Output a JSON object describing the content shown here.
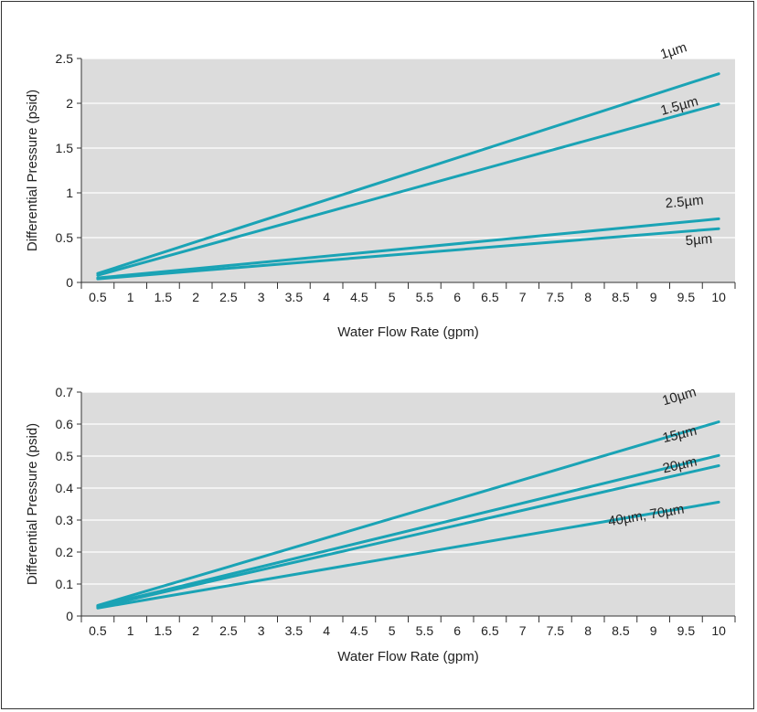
{
  "colors": {
    "plot_bg": "#dcdcdc",
    "grid": "#ffffff",
    "line": "#1aa3b5",
    "text": "#222222"
  },
  "chart_data": [
    {
      "type": "line",
      "title": "",
      "xlabel": "Water Flow Rate (gpm)",
      "ylabel": "Differential Pressure (psid)",
      "xlim": [
        0.25,
        10.25
      ],
      "ylim": [
        0,
        2.5
      ],
      "x_ticks": [
        0.5,
        1,
        1.5,
        2,
        2.5,
        3,
        3.5,
        4,
        4.5,
        5,
        5.5,
        6,
        6.5,
        7,
        7.5,
        8,
        8.5,
        9,
        9.5,
        10
      ],
      "x_tick_labels": [
        "0.5",
        "1",
        "1.5",
        "2",
        "2.5",
        "3",
        "3.5",
        "4",
        "4.5",
        "5",
        "5.5",
        "6",
        "6.5",
        "7",
        "7.5",
        "8",
        "8.5",
        "9",
        "9.5",
        "10"
      ],
      "y_ticks": [
        0,
        0.5,
        1,
        1.5,
        2,
        2.5
      ],
      "y_tick_labels": [
        "0",
        "0.5",
        "1",
        "1.5",
        "2",
        "2.5"
      ],
      "grid": "horizontal",
      "series": [
        {
          "name": "1µm",
          "x": [
            0.5,
            10
          ],
          "y": [
            0.1,
            2.33
          ]
        },
        {
          "name": "1.5µm",
          "x": [
            0.5,
            10
          ],
          "y": [
            0.08,
            1.99
          ]
        },
        {
          "name": "2.5µm",
          "x": [
            0.5,
            10
          ],
          "y": [
            0.05,
            0.71
          ]
        },
        {
          "name": "5µm",
          "x": [
            0.5,
            10
          ],
          "y": [
            0.04,
            0.6
          ]
        }
      ]
    },
    {
      "type": "line",
      "title": "",
      "xlabel": "Water Flow Rate (gpm)",
      "ylabel": "Differential Pressure (psid)",
      "xlim": [
        0.25,
        10.25
      ],
      "ylim": [
        0,
        0.7
      ],
      "x_ticks": [
        0.5,
        1,
        1.5,
        2,
        2.5,
        3,
        3.5,
        4,
        4.5,
        5,
        5.5,
        6,
        6.5,
        7,
        7.5,
        8,
        8.5,
        9,
        9.5,
        10
      ],
      "x_tick_labels": [
        "0.5",
        "1",
        "1.5",
        "2",
        "2.5",
        "3",
        "3.5",
        "4",
        "4.5",
        "5",
        "5.5",
        "6",
        "6.5",
        "7",
        "7.5",
        "8",
        "8.5",
        "9",
        "9.5",
        "10"
      ],
      "y_ticks": [
        0,
        0.1,
        0.2,
        0.3,
        0.4,
        0.5,
        0.6,
        0.7
      ],
      "y_tick_labels": [
        "0",
        "0.1",
        "0.2",
        "0.3",
        "0.4",
        "0.5",
        "0.6",
        "0.7"
      ],
      "grid": "horizontal",
      "series": [
        {
          "name": "10µm",
          "x": [
            0.5,
            10
          ],
          "y": [
            0.033,
            0.607
          ]
        },
        {
          "name": "15µm",
          "x": [
            0.5,
            10
          ],
          "y": [
            0.03,
            0.502
          ]
        },
        {
          "name": "20µm",
          "x": [
            0.5,
            10
          ],
          "y": [
            0.028,
            0.47
          ]
        },
        {
          "name": "40µm, 70µm",
          "x": [
            0.5,
            10
          ],
          "y": [
            0.025,
            0.356
          ]
        }
      ]
    }
  ]
}
